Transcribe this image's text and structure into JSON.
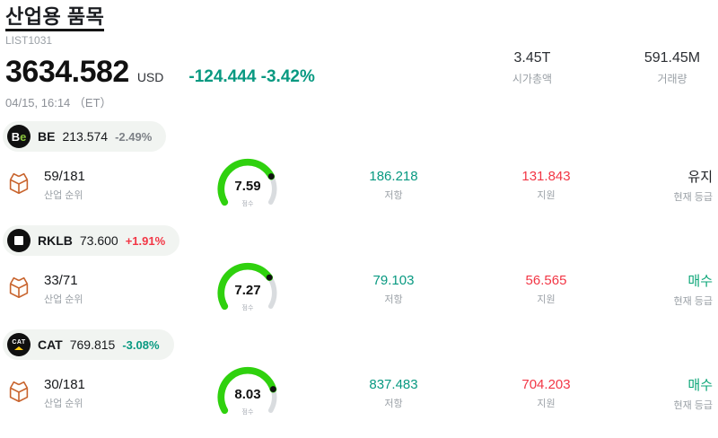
{
  "header": {
    "title": "산업용 품목",
    "list_id": "LIST1031",
    "price": "3634.582",
    "currency": "USD",
    "change": "-124.444 -3.42%",
    "change_color": "#089981",
    "datetime": "04/15, 16:14 （ET）",
    "market_cap": {
      "value": "3.45T",
      "label": "시가총액"
    },
    "volume": {
      "value": "591.45M",
      "label": "거래량"
    }
  },
  "labels": {
    "rank": "산업 순위",
    "score": "점수",
    "resistance": "저항",
    "support": "지원",
    "rating": "현재 등급"
  },
  "colors": {
    "resistance": "#089981",
    "support": "#f23645",
    "gauge_green": "#2fd10e",
    "gauge_gray": "#d9dcdf",
    "gauge_dot": "#111111"
  },
  "icons": {
    "row_icon": "package-box-icon",
    "be_logo": "be-circle-logo",
    "rklb_logo": "rocketlab-circle-logo",
    "cat_logo": "caterpillar-circle-logo"
  },
  "rows": [
    {
      "ticker": "BE",
      "price": "213.574",
      "change": "-2.49%",
      "change_color": "#7d8187",
      "logo_main": "B",
      "logo_accent": "e",
      "rank": "59/181",
      "score": 7.59,
      "score_text": "7.59",
      "resistance": "186.218",
      "support": "131.843",
      "rating": "유지",
      "rating_color": "#1b1d21"
    },
    {
      "ticker": "RKLB",
      "price": "73.600",
      "change": "+1.91%",
      "change_color": "#f23645",
      "rank": "33/71",
      "score": 7.27,
      "score_text": "7.27",
      "resistance": "79.103",
      "support": "56.565",
      "rating": "매수",
      "rating_color": "#0ca678"
    },
    {
      "ticker": "CAT",
      "price": "769.815",
      "change": "-3.08%",
      "change_color": "#089981",
      "logo_text": "CAT",
      "rank": "30/181",
      "score": 8.03,
      "score_text": "8.03",
      "resistance": "837.483",
      "support": "704.203",
      "rating": "매수",
      "rating_color": "#0ca678"
    }
  ]
}
